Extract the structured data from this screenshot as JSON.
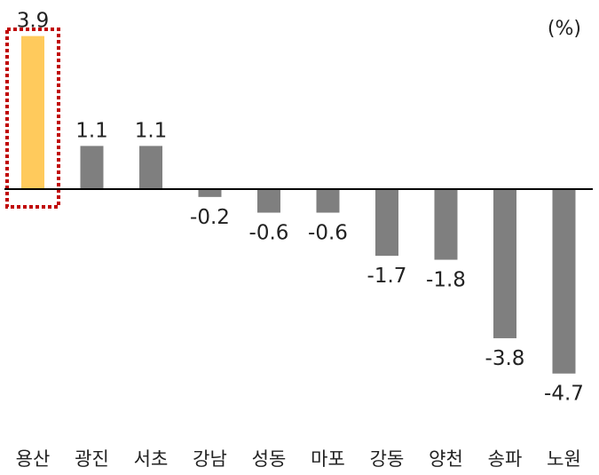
{
  "chart_data": {
    "type": "bar",
    "unit_label": "(%)",
    "categories": [
      "용산",
      "광진",
      "서초",
      "강남",
      "성동",
      "마포",
      "강동",
      "양천",
      "송파",
      "노원"
    ],
    "values": [
      3.9,
      1.1,
      1.1,
      -0.2,
      -0.6,
      -0.6,
      -1.7,
      -1.8,
      -3.8,
      -4.7
    ],
    "data_labels": [
      "3.9",
      "1.1",
      "1.1",
      "-0.2",
      "-0.6",
      "-0.6",
      "-1.7",
      "-1.8",
      "-3.8",
      "-4.7"
    ],
    "highlighted_category": "용산",
    "ylim": [
      -4.7,
      3.9
    ],
    "grid": false,
    "colors": {
      "bar": "#7f7f7f",
      "highlight_bar": "#ffca5c",
      "highlight_box": "#c00000",
      "axis": "#000000",
      "text": "#222222"
    }
  }
}
